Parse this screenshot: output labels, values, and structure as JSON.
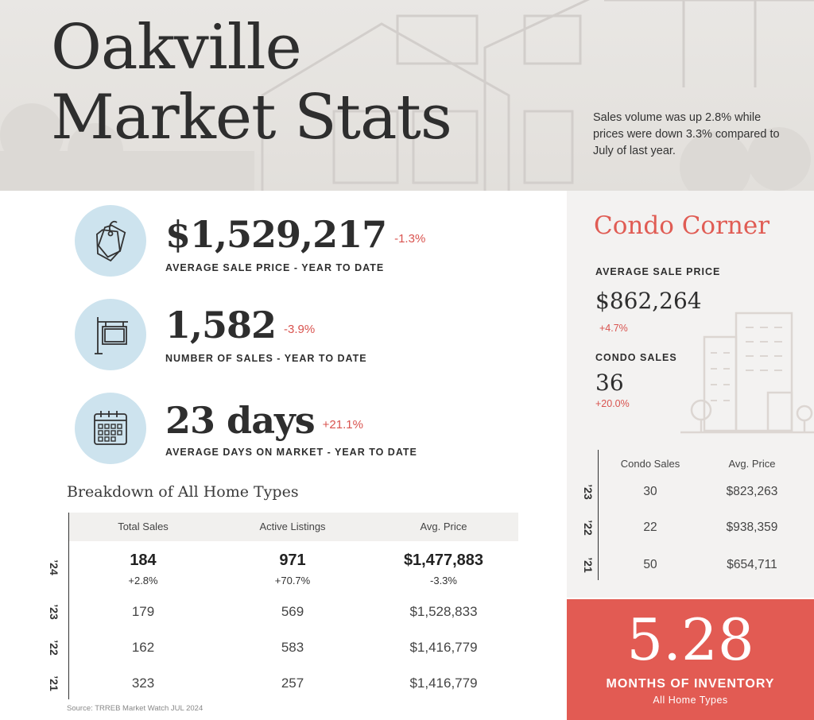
{
  "header": {
    "title_line1": "Oakville",
    "title_line2": "Market Stats",
    "summary": "Sales volume was up 2.8% while prices were down 3.3% compared to July of last year."
  },
  "stats": [
    {
      "icon": "price-tag-icon",
      "value": "$1,529,217",
      "change": "-1.3%",
      "label": "AVERAGE SALE PRICE - YEAR TO DATE"
    },
    {
      "icon": "for-sale-sign-icon",
      "value": "1,582",
      "change": "-3.9%",
      "label": "NUMBER OF SALES - YEAR TO DATE"
    },
    {
      "icon": "calendar-icon",
      "value": "23 days",
      "change": "+21.1%",
      "label": "AVERAGE DAYS ON MARKET - YEAR TO DATE"
    }
  ],
  "breakdown": {
    "title": "Breakdown of All Home Types",
    "columns": [
      "Total Sales",
      "Active Listings",
      "Avg. Price"
    ],
    "rows": [
      {
        "year": "’24",
        "total_sales": "184",
        "total_sales_change": "+2.8%",
        "active_listings": "971",
        "active_listings_change": "+70.7%",
        "avg_price": "$1,477,883",
        "avg_price_change": "-3.3%"
      },
      {
        "year": "’23",
        "total_sales": "179",
        "active_listings": "569",
        "avg_price": "$1,528,833"
      },
      {
        "year": "’22",
        "total_sales": "162",
        "active_listings": "583",
        "avg_price": "$1,416,779"
      },
      {
        "year": "’21",
        "total_sales": "323",
        "active_listings": "257",
        "avg_price": "$1,416,779"
      }
    ],
    "source": "Source: TRREB Market Watch JUL 2024"
  },
  "condo": {
    "title": "Condo Corner",
    "avg_price_label": "AVERAGE SALE PRICE",
    "avg_price_value": "$862,264",
    "avg_price_change": "+4.7%",
    "sales_label": "CONDO SALES",
    "sales_value": "36",
    "sales_change": "+20.0%",
    "columns": [
      "Condo Sales",
      "Avg. Price"
    ],
    "rows": [
      {
        "year": "’23",
        "sales": "30",
        "avg_price": "$823,263"
      },
      {
        "year": "’22",
        "sales": "22",
        "avg_price": "$938,359"
      },
      {
        "year": "’21",
        "sales": "50",
        "avg_price": "$654,711"
      }
    ]
  },
  "inventory": {
    "value": "5.28",
    "label": "MONTHS OF INVENTORY",
    "sub": "All Home Types"
  },
  "colors": {
    "accent_red": "#e25b53",
    "icon_circle": "#cde3ee",
    "text_dark": "#2e2e2e"
  }
}
